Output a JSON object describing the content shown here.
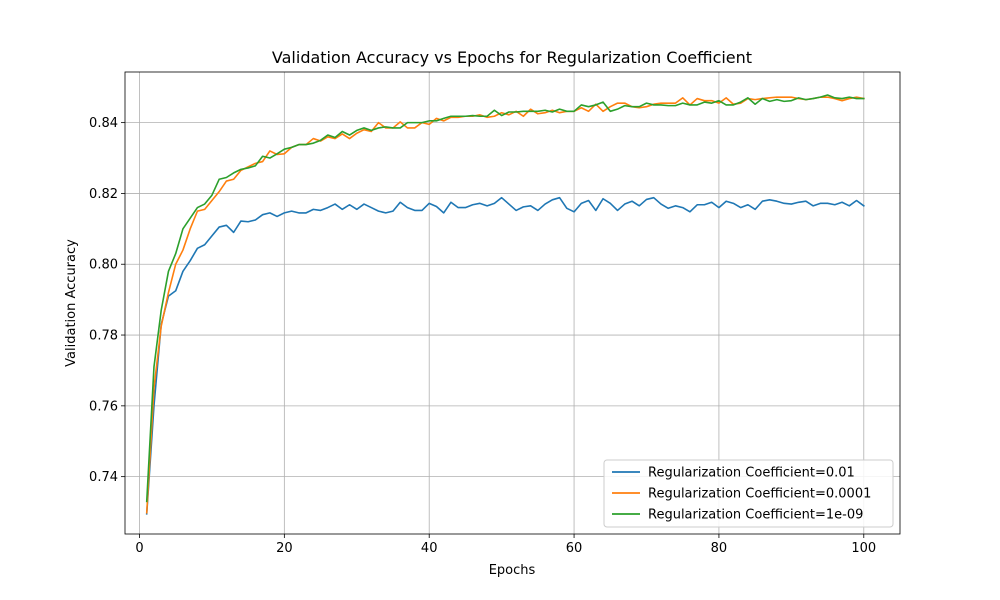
{
  "chart_data": {
    "type": "line",
    "title": "Validation Accuracy vs Epochs for Regularization Coefficient",
    "xlabel": "Epochs",
    "ylabel": "Validation Accuracy",
    "xlim": [
      -2,
      105
    ],
    "ylim": [
      0.7238,
      0.8543
    ],
    "xticks": [
      0,
      20,
      40,
      60,
      80,
      100
    ],
    "yticks": [
      0.74,
      0.76,
      0.78,
      0.8,
      0.82,
      0.84
    ],
    "ytick_labels": [
      "0.74",
      "0.76",
      "0.78",
      "0.80",
      "0.82",
      "0.84"
    ],
    "grid": true,
    "legend_position": "lower-right",
    "series": [
      {
        "name": "Regularization Coefficient=0.01",
        "color": "#1f77b4",
        "x": [
          1,
          2,
          3,
          4,
          5,
          6,
          7,
          8,
          9,
          10,
          11,
          12,
          13,
          14,
          15,
          16,
          17,
          18,
          19,
          20,
          21,
          22,
          23,
          24,
          25,
          26,
          27,
          28,
          29,
          30,
          31,
          32,
          33,
          34,
          35,
          36,
          37,
          38,
          39,
          40,
          41,
          42,
          43,
          44,
          45,
          46,
          47,
          48,
          49,
          50,
          51,
          52,
          53,
          54,
          55,
          56,
          57,
          58,
          59,
          60,
          61,
          62,
          63,
          64,
          65,
          66,
          67,
          68,
          69,
          70,
          71,
          72,
          73,
          74,
          75,
          76,
          77,
          78,
          79,
          80,
          81,
          82,
          83,
          84,
          85,
          86,
          87,
          88,
          89,
          90,
          91,
          92,
          93,
          94,
          95,
          96,
          97,
          98,
          99,
          100
        ],
        "y": [
          0.7295,
          0.76,
          0.783,
          0.791,
          0.7925,
          0.798,
          0.801,
          0.8045,
          0.8055,
          0.808,
          0.8105,
          0.811,
          0.809,
          0.8122,
          0.812,
          0.8125,
          0.814,
          0.8145,
          0.8135,
          0.8145,
          0.815,
          0.8145,
          0.8145,
          0.8155,
          0.8152,
          0.816,
          0.817,
          0.8155,
          0.8168,
          0.8155,
          0.817,
          0.816,
          0.815,
          0.8145,
          0.815,
          0.8175,
          0.816,
          0.8152,
          0.8152,
          0.8172,
          0.8163,
          0.8145,
          0.8175,
          0.816,
          0.816,
          0.8168,
          0.8172,
          0.8165,
          0.8172,
          0.8188,
          0.817,
          0.8152,
          0.8162,
          0.8165,
          0.8152,
          0.817,
          0.8182,
          0.8188,
          0.8158,
          0.8148,
          0.8172,
          0.818,
          0.8152,
          0.8185,
          0.8172,
          0.8152,
          0.817,
          0.8178,
          0.8165,
          0.8183,
          0.8188,
          0.817,
          0.8158,
          0.8165,
          0.816,
          0.8148,
          0.8168,
          0.8168,
          0.8175,
          0.816,
          0.8178,
          0.8172,
          0.816,
          0.8168,
          0.8155,
          0.8178,
          0.8182,
          0.8178,
          0.8172,
          0.817,
          0.8175,
          0.8178,
          0.8165,
          0.8172,
          0.8172,
          0.8168,
          0.8175,
          0.8165,
          0.818,
          0.8165
        ]
      },
      {
        "name": "Regularization Coefficient=0.0001",
        "color": "#ff7f0e",
        "x": [
          1,
          2,
          3,
          4,
          5,
          6,
          7,
          8,
          9,
          10,
          11,
          12,
          13,
          14,
          15,
          16,
          17,
          18,
          19,
          20,
          21,
          22,
          23,
          24,
          25,
          26,
          27,
          28,
          29,
          30,
          31,
          32,
          33,
          34,
          35,
          36,
          37,
          38,
          39,
          40,
          41,
          42,
          43,
          44,
          45,
          46,
          47,
          48,
          49,
          50,
          51,
          52,
          53,
          54,
          55,
          56,
          57,
          58,
          59,
          60,
          61,
          62,
          63,
          64,
          65,
          66,
          67,
          68,
          69,
          70,
          71,
          72,
          73,
          74,
          75,
          76,
          77,
          78,
          79,
          80,
          81,
          82,
          83,
          84,
          85,
          86,
          87,
          88,
          89,
          90,
          91,
          92,
          93,
          94,
          95,
          96,
          97,
          98,
          99,
          100
        ],
        "y": [
          0.7298,
          0.765,
          0.7825,
          0.792,
          0.8,
          0.804,
          0.81,
          0.815,
          0.8155,
          0.818,
          0.8205,
          0.8235,
          0.824,
          0.8265,
          0.8275,
          0.8285,
          0.829,
          0.832,
          0.831,
          0.8312,
          0.833,
          0.8338,
          0.8338,
          0.8355,
          0.8348,
          0.836,
          0.8355,
          0.8368,
          0.8355,
          0.837,
          0.838,
          0.8375,
          0.84,
          0.8385,
          0.8385,
          0.8402,
          0.8385,
          0.8385,
          0.84,
          0.8395,
          0.8412,
          0.8405,
          0.8415,
          0.8415,
          0.8418,
          0.8418,
          0.8422,
          0.8415,
          0.8418,
          0.8428,
          0.8422,
          0.8432,
          0.8418,
          0.8438,
          0.8425,
          0.8428,
          0.8435,
          0.8428,
          0.8432,
          0.8432,
          0.8442,
          0.8432,
          0.8452,
          0.8432,
          0.8445,
          0.8455,
          0.8455,
          0.8445,
          0.8442,
          0.8445,
          0.8452,
          0.8455,
          0.8455,
          0.8455,
          0.847,
          0.845,
          0.8468,
          0.8462,
          0.8462,
          0.8455,
          0.847,
          0.8452,
          0.8455,
          0.8468,
          0.8465,
          0.8468,
          0.847,
          0.8472,
          0.8472,
          0.8472,
          0.8468,
          0.8465,
          0.8468,
          0.8472,
          0.8472,
          0.8468,
          0.8462,
          0.8468,
          0.8472,
          0.8468
        ]
      },
      {
        "name": "Regularization Coefficient=1e-09",
        "color": "#2ca02c",
        "x": [
          1,
          2,
          3,
          4,
          5,
          6,
          7,
          8,
          9,
          10,
          11,
          12,
          13,
          14,
          15,
          16,
          17,
          18,
          19,
          20,
          21,
          22,
          23,
          24,
          25,
          26,
          27,
          28,
          29,
          30,
          31,
          32,
          33,
          34,
          35,
          36,
          37,
          38,
          39,
          40,
          41,
          42,
          43,
          44,
          45,
          46,
          47,
          48,
          49,
          50,
          51,
          52,
          53,
          54,
          55,
          56,
          57,
          58,
          59,
          60,
          61,
          62,
          63,
          64,
          65,
          66,
          67,
          68,
          69,
          70,
          71,
          72,
          73,
          74,
          75,
          76,
          77,
          78,
          79,
          80,
          81,
          82,
          83,
          84,
          85,
          86,
          87,
          88,
          89,
          90,
          91,
          92,
          93,
          94,
          95,
          96,
          97,
          98,
          99,
          100
        ],
        "y": [
          0.733,
          0.771,
          0.787,
          0.798,
          0.803,
          0.81,
          0.813,
          0.816,
          0.817,
          0.8195,
          0.824,
          0.8245,
          0.8258,
          0.8268,
          0.8272,
          0.8278,
          0.8305,
          0.83,
          0.8312,
          0.8325,
          0.833,
          0.8338,
          0.8338,
          0.8342,
          0.835,
          0.8365,
          0.8358,
          0.8375,
          0.8365,
          0.8378,
          0.8385,
          0.8378,
          0.8385,
          0.8388,
          0.8385,
          0.8385,
          0.84,
          0.84,
          0.84,
          0.8405,
          0.8405,
          0.8412,
          0.8418,
          0.8418,
          0.8418,
          0.842,
          0.8418,
          0.8418,
          0.8435,
          0.842,
          0.843,
          0.843,
          0.8432,
          0.8432,
          0.8432,
          0.8435,
          0.843,
          0.8438,
          0.8432,
          0.8432,
          0.845,
          0.8445,
          0.845,
          0.8458,
          0.8432,
          0.8438,
          0.8448,
          0.8445,
          0.8445,
          0.8455,
          0.845,
          0.845,
          0.8448,
          0.8448,
          0.8455,
          0.845,
          0.845,
          0.8458,
          0.8455,
          0.8462,
          0.845,
          0.845,
          0.8458,
          0.847,
          0.8452,
          0.8468,
          0.846,
          0.8465,
          0.846,
          0.8462,
          0.847,
          0.8465,
          0.8468,
          0.8472,
          0.8478,
          0.847,
          0.8468,
          0.8472,
          0.8468,
          0.8468
        ]
      }
    ]
  }
}
